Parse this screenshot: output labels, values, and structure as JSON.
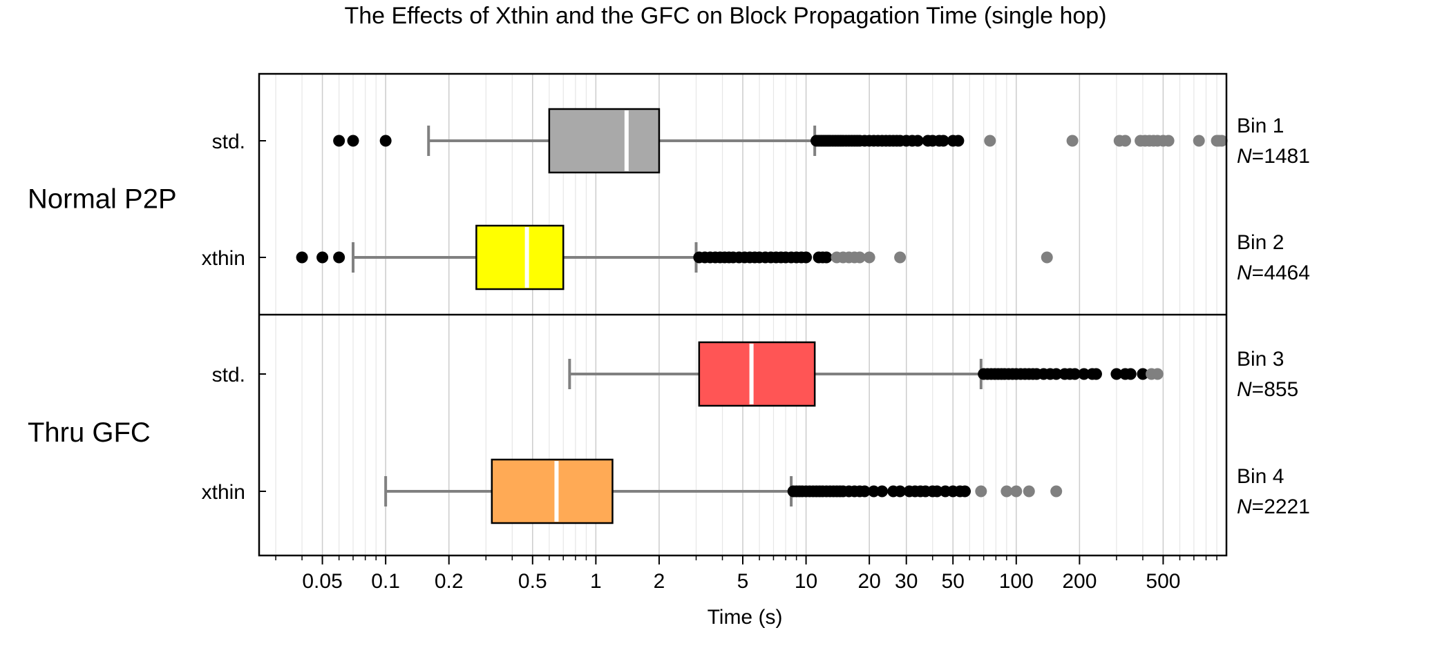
{
  "chart_data": {
    "type": "boxplot",
    "title": "The Effects of Xthin and the GFC on Block Propagation Time (single hop)",
    "xlabel": "Time (s)",
    "ylabel": "",
    "x_scale": "log",
    "xlim": [
      0.025,
      1000
    ],
    "x_ticks": [
      0.05,
      0.1,
      0.2,
      0.5,
      1,
      2,
      5,
      10,
      20,
      30,
      50,
      100,
      200,
      500
    ],
    "x_tick_labels": [
      "0.05",
      "0.1",
      "0.2",
      "0.5",
      "1",
      "2",
      "5",
      "10",
      "20",
      "30",
      "50",
      "100",
      "200",
      "500"
    ],
    "grid": true,
    "notched": true,
    "groups": [
      {
        "label": "Normal P2P",
        "rows": [
          0,
          1
        ]
      },
      {
        "label": "Thru GFC",
        "rows": [
          2,
          3
        ]
      }
    ],
    "series": [
      {
        "row_label": "std.",
        "bin_label": "Bin 1",
        "n_prefix": "N",
        "n_text": "=1481",
        "n": 1481,
        "color": "#a9a9a9",
        "whisker_low": 0.16,
        "q1": 0.6,
        "median": 1.4,
        "q3": 2.0,
        "whisker_high": 11,
        "outliers_black": [
          0.06,
          0.07,
          0.1,
          11.2,
          11.5,
          11.8,
          12.1,
          12.4,
          12.7,
          13,
          13.4,
          13.8,
          14.2,
          14.6,
          15,
          15.5,
          16,
          16.5,
          17,
          17.5,
          18,
          19,
          20,
          21,
          22,
          23,
          24,
          25,
          26,
          27,
          28,
          30,
          32,
          34,
          38,
          40,
          43,
          45,
          50,
          53
        ],
        "outliers_gray": [
          75,
          185,
          310,
          330,
          390,
          410,
          430,
          450,
          470,
          500,
          530,
          740,
          900,
          920,
          950
        ]
      },
      {
        "row_label": "xthin",
        "bin_label": "Bin 2",
        "n_prefix": "N",
        "n_text": "=4464",
        "n": 4464,
        "color": "#ffff00",
        "whisker_low": 0.07,
        "q1": 0.27,
        "median": 0.47,
        "q3": 0.7,
        "whisker_high": 3.0,
        "outliers_black": [
          0.04,
          0.05,
          0.06,
          3.1,
          3.3,
          3.5,
          3.7,
          3.9,
          4.1,
          4.3,
          4.5,
          4.8,
          5.1,
          5.4,
          5.7,
          6,
          6.4,
          6.8,
          7.2,
          7.6,
          8,
          8.5,
          9,
          9.5,
          10,
          11.5,
          12,
          12.5
        ],
        "outliers_gray": [
          14,
          15,
          16,
          17,
          18,
          20,
          28,
          140
        ]
      },
      {
        "row_label": "std.",
        "bin_label": "Bin 3",
        "n_prefix": "N",
        "n_text": "=855",
        "n": 855,
        "color": "#ff5555",
        "whisker_low": 0.75,
        "q1": 3.1,
        "median": 5.5,
        "q3": 11,
        "whisker_high": 68,
        "outliers_black": [
          70,
          73,
          76,
          79,
          82,
          85,
          88,
          92,
          96,
          100,
          105,
          110,
          115,
          120,
          125,
          135,
          145,
          155,
          170,
          180,
          190,
          210,
          230,
          240,
          300,
          330,
          350,
          400
        ],
        "outliers_gray": [
          440,
          470
        ]
      },
      {
        "row_label": "xthin",
        "bin_label": "Bin 4",
        "n_prefix": "N",
        "n_text": "=2221",
        "n": 2221,
        "color": "#ffaa55",
        "whisker_low": 0.1,
        "q1": 0.32,
        "median": 0.65,
        "q3": 1.2,
        "whisker_high": 8.5,
        "outliers_black": [
          8.7,
          9,
          9.3,
          9.6,
          10,
          10.4,
          10.8,
          11.2,
          11.6,
          12,
          12.5,
          13,
          13.5,
          14,
          14.5,
          15,
          16,
          17,
          18,
          19,
          21,
          23,
          26,
          28,
          31,
          33,
          35,
          37,
          40,
          42,
          46,
          50,
          54,
          57
        ],
        "outliers_gray": [
          68,
          90,
          100,
          115,
          155
        ]
      }
    ]
  }
}
